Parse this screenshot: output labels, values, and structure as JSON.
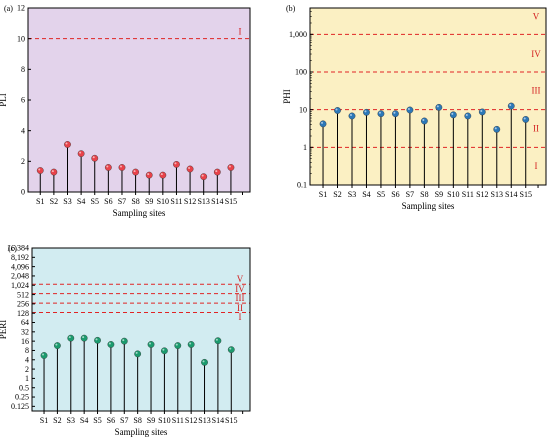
{
  "charts": [
    {
      "id": "a",
      "panel_label": "(a)",
      "ylabel": "PLI",
      "xlabel": "Sampling sites",
      "background": "#e3d3eb",
      "marker_color": "#e8424a",
      "scale": "linear",
      "yticks": [
        0,
        2,
        4,
        6,
        8,
        10,
        12
      ],
      "ylim": [
        0,
        12
      ],
      "threshold_lines": [
        {
          "value": 10,
          "label": "I"
        }
      ],
      "categories": [
        "S1",
        "S2",
        "S3",
        "S4",
        "S5",
        "S6",
        "S7",
        "S8",
        "S9",
        "S10",
        "S11",
        "S12",
        "S13",
        "S14",
        "S15"
      ],
      "values": [
        1.4,
        1.3,
        3.1,
        2.5,
        2.2,
        1.6,
        1.6,
        1.3,
        1.1,
        1.1,
        1.8,
        1.5,
        1.0,
        1.3,
        1.6
      ]
    },
    {
      "id": "b",
      "panel_label": "(b)",
      "ylabel": "PHI",
      "xlabel": "Sampling sites",
      "background": "#fbf0c3",
      "marker_color": "#2c78b8",
      "scale": "log",
      "yticks": [
        0.1,
        1,
        10,
        100,
        1000
      ],
      "ytick_labels": [
        "0.1",
        "1",
        "10",
        "100",
        "1,000"
      ],
      "ylim": [
        0.1,
        5000
      ],
      "threshold_lines": [
        {
          "value": 1000,
          "label": "V"
        },
        {
          "value": 100,
          "label": "IV"
        },
        {
          "value": 10,
          "label": "III"
        },
        {
          "value": 1,
          "label": "II"
        }
      ],
      "region_labels": [
        {
          "value": 3000,
          "label": "V"
        },
        {
          "value": 300,
          "label": "IV"
        },
        {
          "value": 32,
          "label": "III"
        },
        {
          "value": 3.2,
          "label": "II"
        },
        {
          "value": 0.32,
          "label": "I"
        }
      ],
      "categories": [
        "S1",
        "S2",
        "S3",
        "S4",
        "S5",
        "S6",
        "S7",
        "S8",
        "S9",
        "S10",
        "S11",
        "S12",
        "S13",
        "S14",
        "S15"
      ],
      "values": [
        4.2,
        9.5,
        6.8,
        8.5,
        7.8,
        7.8,
        9.8,
        5.0,
        11.5,
        7.3,
        6.8,
        8.7,
        3.0,
        12.5,
        5.5
      ]
    },
    {
      "id": "c",
      "panel_label": "(c)",
      "ylabel": "PERI",
      "xlabel": "Sampling sites",
      "background": "#d2ecf1",
      "marker_color": "#1b9b6e",
      "scale": "log2",
      "yticks": [
        0.125,
        0.25,
        0.5,
        1,
        2,
        4,
        8,
        16,
        32,
        64,
        128,
        256,
        512,
        1024,
        2048,
        4096,
        8192,
        16384
      ],
      "ytick_labels": [
        "0.125",
        "0.25",
        "0.5",
        "1",
        "2",
        "4",
        "8",
        "16",
        "32",
        "64",
        "128",
        "256",
        "512",
        "1,024",
        "2,048",
        "4,096",
        "8,192",
        "16,384"
      ],
      "ylim": [
        0.0884,
        16384
      ],
      "threshold_lines": [
        {
          "value": 1100,
          "label": "V"
        },
        {
          "value": 550,
          "label": "IV"
        },
        {
          "value": 270,
          "label": "III"
        },
        {
          "value": 135,
          "label": "II"
        }
      ],
      "region_labels": [
        {
          "value": 1650,
          "label": "V"
        },
        {
          "value": 780,
          "label": "IV"
        },
        {
          "value": 390,
          "label": "III"
        },
        {
          "value": 192,
          "label": "II"
        },
        {
          "value": 95,
          "label": "I"
        }
      ],
      "categories": [
        "S1",
        "S2",
        "S3",
        "S4",
        "S5",
        "S6",
        "S7",
        "S8",
        "S9",
        "S10",
        "S11",
        "S12",
        "S13",
        "S14",
        "S15"
      ],
      "values": [
        5.5,
        11.5,
        20,
        20,
        17,
        12.5,
        16,
        6.2,
        12.5,
        7.8,
        11.5,
        12.5,
        3.3,
        16.5,
        8.5
      ]
    }
  ]
}
